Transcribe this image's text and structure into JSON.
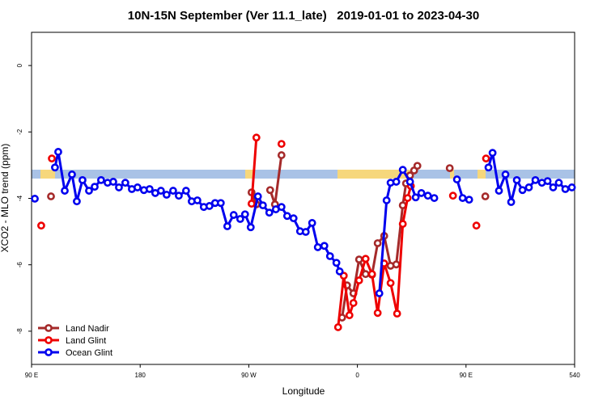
{
  "chart_data": {
    "type": "line",
    "title": "10N-15N September (Ver 11.1_late)   2019-01-01 to 2023-04-30",
    "xlabel": "Longitude",
    "ylabel": "XCO2 - MLO trend (ppm)",
    "xlim": [
      90,
      540
    ],
    "ylim": [
      -9,
      1
    ],
    "xticks": [
      {
        "value": 90,
        "label": "90 E"
      },
      180,
      {
        "value": 270,
        "label": "90 W"
      },
      {
        "value": 360,
        "label": "0"
      },
      {
        "value": 450,
        "label": "90 E"
      },
      540
    ],
    "yticks": [
      0,
      -2,
      -4,
      -6,
      -8
    ],
    "legend": "bottom-left",
    "series": [
      {
        "name": "Land Nadir",
        "color": "#a52a2a",
        "x": [
          106.1,
          null,
          272.3,
          276.3,
          null,
          287.7,
          291.7,
          297.1,
          null,
          347.3,
          351.4,
          356.7,
          361.4,
          366.8,
          372.1,
          376.8,
          382.2,
          387.5,
          392.2,
          397.6,
          400.3,
          403.6,
          407.0,
          409.7,
          null,
          436.5,
          null,
          466.0
        ],
        "values": [
          -3.94,
          null,
          -3.82,
          -4.18,
          null,
          -3.75,
          -4.18,
          -2.7,
          null,
          -7.59,
          -6.62,
          -6.86,
          -5.84,
          -6.28,
          -6.3,
          -5.35,
          -5.13,
          -6.03,
          -5.99,
          -4.21,
          -3.55,
          -3.31,
          -3.16,
          -3.02,
          null,
          -3.09,
          null,
          -3.94
        ]
      },
      {
        "name": "Land Glint",
        "color": "#ee0000",
        "x": [
          98.0,
          null,
          106.8,
          null,
          272.3,
          276.3,
          null,
          297.1,
          null,
          344.0,
          348.7,
          353.4,
          356.7,
          361.4,
          366.8,
          372.1,
          376.8,
          382.2,
          387.5,
          392.9,
          397.6,
          401.6,
          404.3,
          null,
          439.2,
          null,
          458.6,
          null,
          466.6
        ],
        "values": [
          -4.82,
          null,
          -2.8,
          null,
          -4.16,
          -2.17,
          null,
          -2.36,
          null,
          -7.88,
          -6.33,
          -7.52,
          -7.15,
          -6.47,
          -5.82,
          -6.28,
          -7.45,
          -5.96,
          -6.55,
          -7.47,
          -4.77,
          -3.99,
          -3.63,
          null,
          -3.92,
          null,
          -4.82,
          null,
          -2.8
        ]
      },
      {
        "name": "Ocean Glint",
        "color": "#0000ee",
        "x": [
          92.7,
          null,
          109.4,
          112.1,
          117.5,
          123.5,
          127.5,
          132.2,
          137.6,
          142.3,
          147.6,
          153.0,
          157.7,
          162.4,
          167.7,
          173.1,
          177.8,
          183.1,
          187.8,
          192.5,
          197.2,
          201.9,
          207.3,
          212.0,
          218.0,
          222.7,
          227.4,
          232.7,
          237.4,
          242.1,
          246.8,
          252.2,
          257.5,
          262.9,
          266.9,
          271.6,
          277.6,
          281.7,
          287.0,
          292.4,
          297.1,
          301.8,
          307.1,
          312.5,
          317.2,
          322.5,
          327.2,
          332.6,
          337.3,
          342.6,
          345.3,
          null,
          378.2,
          384.2,
          387.5,
          392.2,
          397.6,
          403.6,
          408.3,
          413.0,
          418.4,
          423.7,
          null,
          442.5,
          447.2,
          452.6,
          null,
          468.6,
          472.0,
          477.3,
          482.7,
          487.4,
          492.1,
          496.8,
          502.1,
          507.5,
          512.9,
          517.6,
          522.2,
          526.9,
          532.3,
          537.7
        ],
        "values": [
          -4.01,
          null,
          -3.07,
          -2.6,
          -3.77,
          -3.28,
          -4.09,
          -3.45,
          -3.77,
          -3.65,
          -3.45,
          -3.53,
          -3.5,
          -3.67,
          -3.53,
          -3.72,
          -3.67,
          -3.75,
          -3.72,
          -3.84,
          -3.77,
          -3.89,
          -3.77,
          -3.92,
          -3.77,
          -4.09,
          -4.06,
          -4.26,
          -4.23,
          -4.14,
          -4.14,
          -4.84,
          -4.5,
          -4.62,
          -4.48,
          -4.87,
          -3.94,
          -4.21,
          -4.43,
          -4.33,
          -4.26,
          -4.53,
          -4.6,
          -4.99,
          -5.01,
          -4.74,
          -5.47,
          -5.43,
          -5.74,
          -5.94,
          -6.2,
          null,
          -6.86,
          -4.06,
          -3.53,
          -3.5,
          -3.14,
          -3.5,
          -3.97,
          -3.84,
          -3.92,
          -3.99,
          null,
          -3.43,
          -3.99,
          -4.04,
          null,
          -3.07,
          -2.63,
          -3.77,
          -3.28,
          -4.11,
          -3.45,
          -3.75,
          -3.67,
          -3.45,
          -3.53,
          -3.48,
          -3.67,
          -3.53,
          -3.72,
          -3.67
        ]
      }
    ]
  }
}
